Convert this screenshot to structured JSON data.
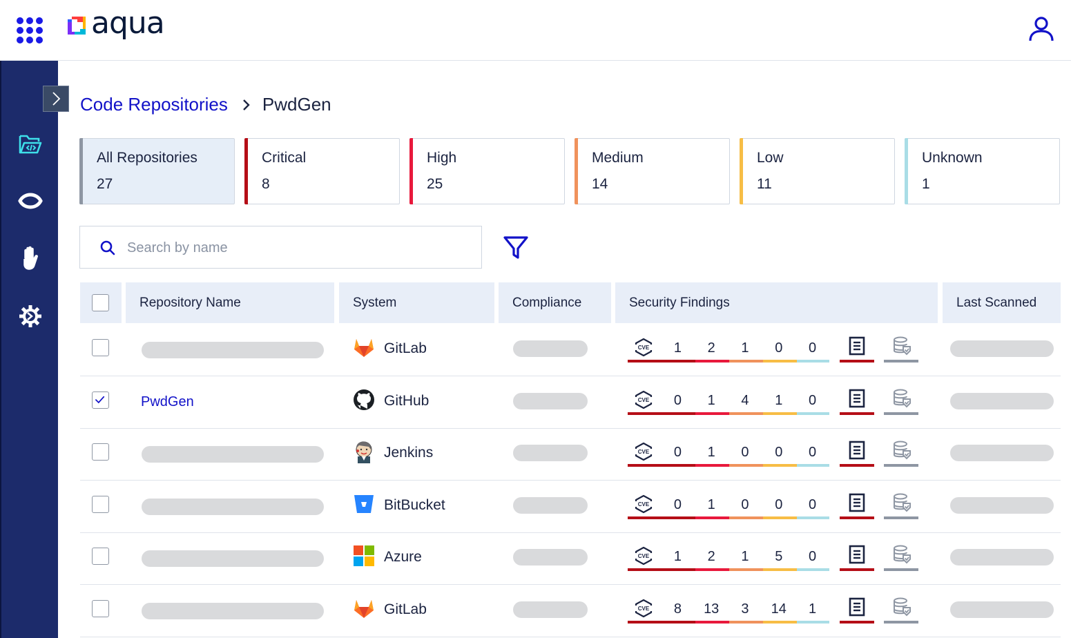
{
  "brand": {
    "name": "aqua",
    "accent": "#1212c8",
    "sidebar_color": "#1c2b6b"
  },
  "topbar": {
    "apps_icon": "grid-dots-icon",
    "user_icon": "user-icon"
  },
  "sidebar": {
    "items": [
      {
        "name": "code-folder-icon",
        "active": true
      },
      {
        "name": "eye-icon",
        "active": false
      },
      {
        "name": "hand-icon",
        "active": false
      },
      {
        "name": "gear-icon",
        "active": false
      }
    ]
  },
  "breadcrumb": {
    "parent": "Code Repositories",
    "current": "PwdGen"
  },
  "cards": [
    {
      "label": "All Repositories",
      "count": "27",
      "color": "#8e96a3",
      "selected": true
    },
    {
      "label": "Critical",
      "count": "8",
      "color": "#b50e17",
      "selected": false
    },
    {
      "label": "High",
      "count": "25",
      "color": "#e8193c",
      "selected": false
    },
    {
      "label": "Medium",
      "count": "14",
      "color": "#f0925c",
      "selected": false
    },
    {
      "label": "Low",
      "count": "11",
      "color": "#f7bd45",
      "selected": false
    },
    {
      "label": "Unknown",
      "count": "1",
      "color": "#a9dde6",
      "selected": false
    }
  ],
  "search": {
    "placeholder": "Search by name",
    "value": ""
  },
  "table": {
    "headers": {
      "name": "Repository Name",
      "system": "System",
      "compliance": "Compliance",
      "findings": "Security Findings",
      "last_scanned": "Last Scanned"
    },
    "rows": [
      {
        "name": "",
        "checked": false,
        "system": "GitLab",
        "system_icon": "gitlab-icon",
        "findings": [
          "1",
          "2",
          "1",
          "0",
          "0"
        ]
      },
      {
        "name": "PwdGen",
        "checked": true,
        "system": "GitHub",
        "system_icon": "github-icon",
        "findings": [
          "0",
          "1",
          "4",
          "1",
          "0"
        ]
      },
      {
        "name": "",
        "checked": false,
        "system": "Jenkins",
        "system_icon": "jenkins-icon",
        "findings": [
          "0",
          "1",
          "0",
          "0",
          "0"
        ]
      },
      {
        "name": "",
        "checked": false,
        "system": "BitBucket",
        "system_icon": "bitbucket-icon",
        "findings": [
          "0",
          "1",
          "0",
          "0",
          "0"
        ]
      },
      {
        "name": "",
        "checked": false,
        "system": "Azure",
        "system_icon": "azure-icon",
        "findings": [
          "1",
          "2",
          "1",
          "5",
          "0"
        ]
      },
      {
        "name": "",
        "checked": false,
        "system": "GitLab",
        "system_icon": "gitlab-icon",
        "findings": [
          "8",
          "13",
          "3",
          "14",
          "1"
        ]
      }
    ]
  }
}
